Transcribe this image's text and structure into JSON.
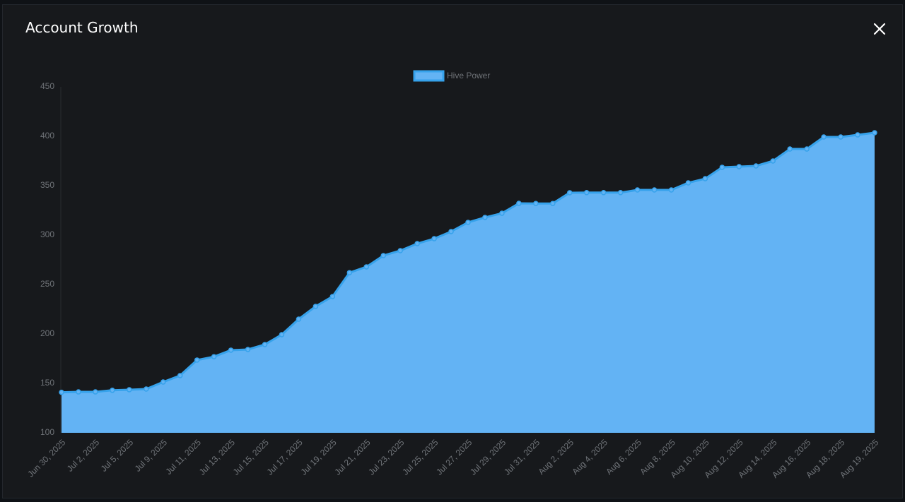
{
  "header": {
    "title": "Account Growth"
  },
  "chart_data": {
    "type": "area",
    "categories": [
      "Jun 30, 2025",
      null,
      "Jul 2, 2025",
      null,
      "Jul 5, 2025",
      null,
      "Jul 9, 2025",
      null,
      "Jul 11, 2025",
      null,
      "Jul 13, 2025",
      null,
      "Jul 15, 2025",
      null,
      "Jul 17, 2025",
      null,
      "Jul 19, 2025",
      null,
      "Jul 21, 2025",
      null,
      "Jul 23, 2025",
      null,
      "Jul 25, 2025",
      null,
      "Jul 27, 2025",
      null,
      "Jul 29, 2025",
      null,
      "Jul 31, 2025",
      null,
      "Aug 2, 2025",
      null,
      "Aug 4, 2025",
      null,
      "Aug 6, 2025",
      null,
      "Aug 8, 2025",
      null,
      "Aug 10, 2025",
      null,
      "Aug 12, 2025",
      null,
      "Aug 14, 2025",
      null,
      "Aug 16, 2025",
      null,
      "Aug 18, 2025",
      null,
      "Aug 19, 2025"
    ],
    "series": [
      {
        "name": "Hive Power",
        "color": "#36a2eb",
        "fill": "#63b3f4",
        "values": [
          141,
          141.4,
          141.4,
          143,
          143.6,
          144.3,
          151.4,
          157.9,
          173.6,
          177,
          183.6,
          184.3,
          189.3,
          199.3,
          215,
          227.9,
          237.9,
          262,
          267.9,
          279.3,
          284.3,
          291.4,
          296.4,
          303.6,
          312.9,
          317.9,
          322.1,
          332.1,
          332,
          332,
          342.9,
          343,
          343,
          343,
          345.7,
          345.7,
          345.7,
          352.9,
          357.1,
          368.6,
          369.3,
          370,
          375,
          387.1,
          387.1,
          399.3,
          399.3,
          401.4,
          403.6
        ]
      }
    ],
    "ylim": [
      100,
      450
    ],
    "yticks": [
      100,
      150,
      200,
      250,
      300,
      350,
      400,
      450
    ],
    "grid": false,
    "legend": "top"
  }
}
